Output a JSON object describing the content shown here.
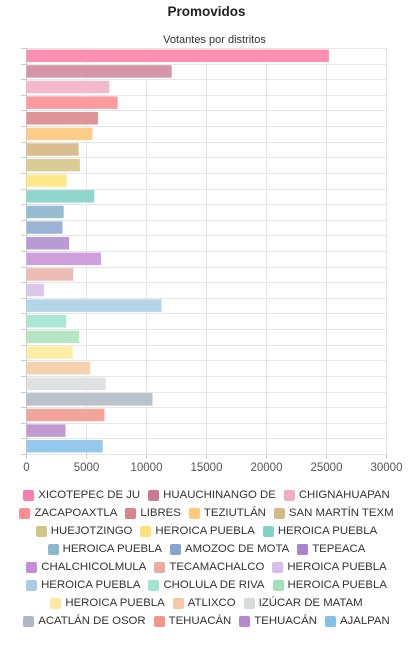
{
  "chart_data": {
    "type": "bar",
    "orientation": "horizontal",
    "title": "Promovidos",
    "subtitle": "Votantes por distritos",
    "xlim": [
      0,
      30000
    ],
    "x_ticks": [
      "0",
      "5000",
      "10000",
      "15000",
      "20000",
      "25000",
      "30000"
    ],
    "grid": true,
    "legend_position": "bottom",
    "categories": [
      "XICOTEPEC DE JU",
      "HUAUCHINANGO DE",
      "CHIGNAHUAPAN",
      "ZACAPOAXTLA",
      "LIBRES",
      "TEZIUTLÁN",
      "SAN MARTÍN TEXM",
      "HUEJOTZINGO",
      "HEROICA PUEBLA",
      "HEROICA PUEBLA",
      "HEROICA PUEBLA",
      "AMOZOC DE MOTA",
      "TEPEACA",
      "CHALCHICOLMULA",
      "TECAMACHALCO",
      "HEROICA PUEBLA",
      "HEROICA PUEBLA",
      "CHOLULA DE RIVA",
      "HEROICA PUEBLA",
      "HEROICA PUEBLA",
      "ATLIXCO",
      "IZÚCAR DE MATAM",
      "ACATLÁN DE OSOR",
      "TEHUACÁN",
      "TEHUACÁN",
      "AJALPAN"
    ],
    "values": [
      25200,
      12100,
      6900,
      7600,
      5950,
      5500,
      4350,
      4450,
      3350,
      5650,
      3100,
      3000,
      3550,
      6200,
      3900,
      1450,
      11250,
      3300,
      4400,
      3850,
      5300,
      6600,
      10500,
      6500,
      3250,
      6350
    ],
    "colors": [
      "#ff8fb3",
      "#d496a7",
      "#f3b8cb",
      "#ff9a9e",
      "#de9498",
      "#ffcc8a",
      "#d8bd8f",
      "#d9cc95",
      "#fde98a",
      "#8fd7cc",
      "#95bccf",
      "#9bb4d6",
      "#b89ad7",
      "#cf9fdd",
      "#eebcb4",
      "#dcc6ec",
      "#b3d5e8",
      "#abe6d6",
      "#b5e6c2",
      "#fdeea6",
      "#f6d1b0",
      "#dfe1df",
      "#b9c1cb",
      "#f4a59a",
      "#c299d3",
      "#95c8ec"
    ],
    "legend_colors": [
      "#f77fb0",
      "#c97b96",
      "#f0adc4",
      "#ff8d92",
      "#d68589",
      "#ffc97a",
      "#d6b88a",
      "#d5c584",
      "#fde27a",
      "#82d2c6",
      "#8ab8cc",
      "#86a4ce",
      "#a885cc",
      "#c48dd6",
      "#e8aca4",
      "#d8bdeb",
      "#a8cde4",
      "#a3e3d2",
      "#a6e0b8",
      "#fde8a0",
      "#f5c9a6",
      "#d8dcd8",
      "#b0b8c3",
      "#f2968a",
      "#b788cc",
      "#86bfe8"
    ]
  }
}
